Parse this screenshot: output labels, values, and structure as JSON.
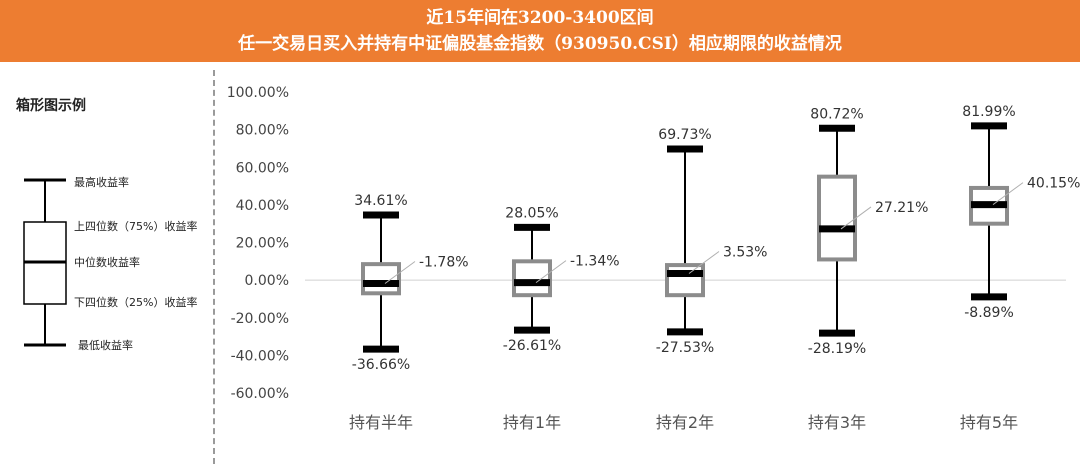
{
  "header": {
    "title_line1": "近15年间在3200-3400区间",
    "title_line2": "任一交易日买入并持有中证偏股基金指数（930950.CSI）相应期限的收益情况"
  },
  "legend": {
    "title": "箱形图示例",
    "labels": {
      "max": "最高收益率",
      "q3": "上四位数（75%）收益率",
      "median": "中位数收益率",
      "q1": "下四位数（25%）收益率",
      "min": "最低收益率"
    }
  },
  "colors": {
    "header_bg": "#ED7D31",
    "box_edge": "#8c8c8c",
    "whisker": "#000000",
    "text": "#333333"
  },
  "chart_data": {
    "type": "boxplot",
    "ylim": [
      -60,
      100
    ],
    "y_ticks": [
      "-60.00%",
      "-40.00%",
      "-20.00%",
      "0.00%",
      "20.00%",
      "40.00%",
      "60.00%",
      "80.00%",
      "100.00%"
    ],
    "categories": [
      "持有半年",
      "持有1年",
      "持有2年",
      "持有3年",
      "持有5年"
    ],
    "boxes": [
      {
        "category": "持有半年",
        "max": 34.61,
        "q3": 8.5,
        "median": -1.78,
        "q1": -7,
        "min": -36.66,
        "max_label": "34.61%",
        "median_label": "-1.78%",
        "min_label": "-36.66%"
      },
      {
        "category": "持有1年",
        "max": 28.05,
        "q3": 10,
        "median": -1.34,
        "q1": -8,
        "min": -26.61,
        "max_label": "28.05%",
        "median_label": "-1.34%",
        "min_label": "-26.61%"
      },
      {
        "category": "持有2年",
        "max": 69.73,
        "q3": 8,
        "median": 3.53,
        "q1": -8,
        "min": -27.53,
        "max_label": "69.73%",
        "median_label": "3.53%",
        "min_label": "-27.53%"
      },
      {
        "category": "持有3年",
        "max": 80.72,
        "q3": 55,
        "median": 27.21,
        "q1": 11,
        "min": -28.19,
        "max_label": "80.72%",
        "median_label": "27.21%",
        "min_label": "-28.19%"
      },
      {
        "category": "持有5年",
        "max": 81.99,
        "q3": 49,
        "median": 40.15,
        "q1": 30,
        "min": -8.89,
        "max_label": "81.99%",
        "median_label": "40.15%",
        "min_label": "-8.89%"
      }
    ]
  }
}
